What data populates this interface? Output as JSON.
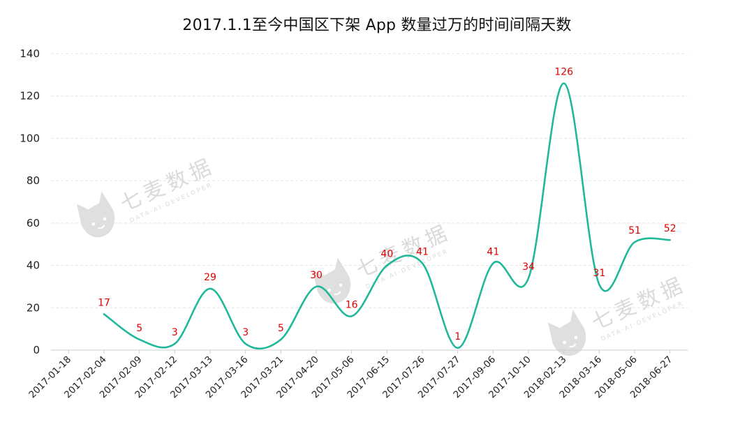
{
  "chart_data": {
    "type": "line",
    "title": "2017.1.1至今中国区下架 App 数量过万的时间间隔天数",
    "xlabel": "",
    "ylabel": "",
    "ylim": [
      0,
      140
    ],
    "yticks": [
      0,
      20,
      40,
      60,
      80,
      100,
      120,
      140
    ],
    "grid": true,
    "legend": "none",
    "smooth": true,
    "categories": [
      "2017-01-18",
      "2017-02-04",
      "2017-02-09",
      "2017-02-12",
      "2017-03-13",
      "2017-03-16",
      "2017-03-21",
      "2017-04-20",
      "2017-05-06",
      "2017-06-15",
      "2017-07-26",
      "2017-07-27",
      "2017-09-06",
      "2017-10-10",
      "2018-02-13",
      "2018-03-16",
      "2018-05-06",
      "2018-06-27"
    ],
    "series": [
      {
        "values": [
          null,
          17,
          5,
          3,
          29,
          3,
          5,
          30,
          16,
          40,
          41,
          1,
          41,
          34,
          126,
          31,
          51,
          52
        ]
      }
    ],
    "colors": {
      "line": "#1fb899",
      "data_label": "#e00000",
      "grid": "#e3e3e3",
      "axis": "#cccccc"
    }
  },
  "watermark": {
    "text": "七麦数据",
    "subtext": "DATA·AI·DEVELOPER",
    "icon": "cat-logo-icon"
  }
}
